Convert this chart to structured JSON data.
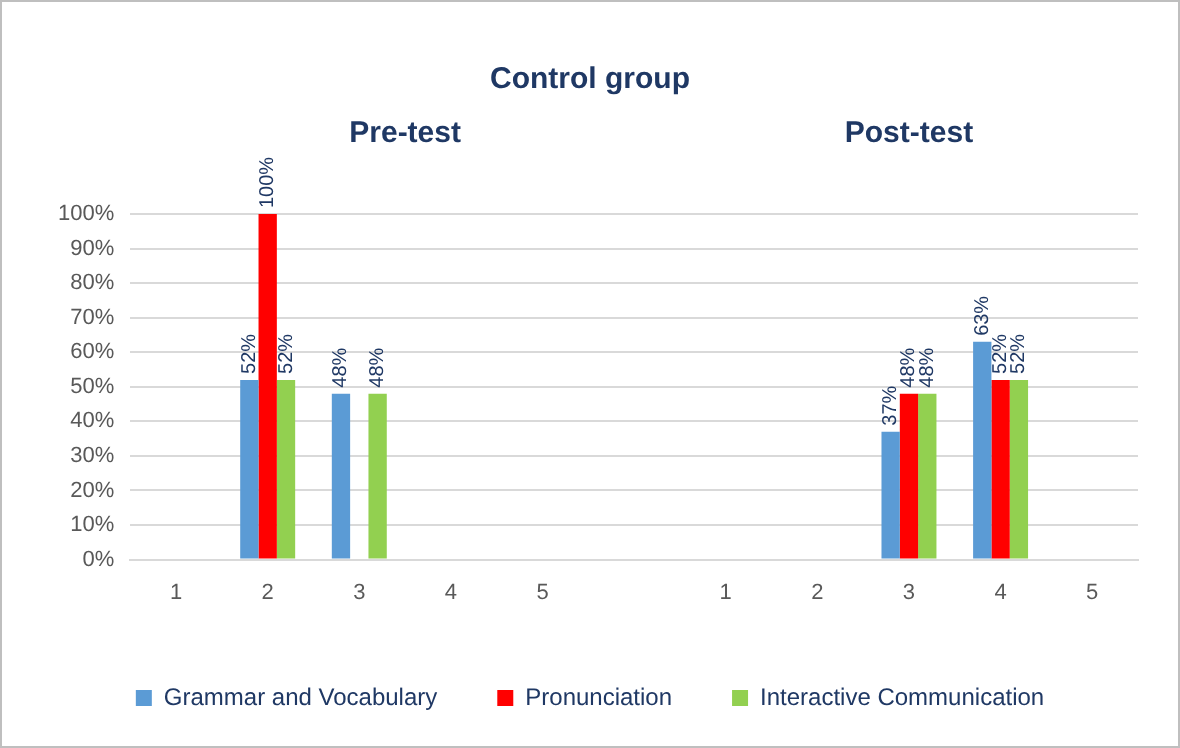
{
  "chart_data": {
    "type": "bar",
    "title": "Control group",
    "annotations": [
      "Pre-test",
      "Post-test"
    ],
    "categories": [
      "1",
      "2",
      "3",
      "4",
      "5",
      null,
      "1",
      "2",
      "3",
      "4",
      "5"
    ],
    "series": [
      {
        "name": "Grammar and Vocabulary",
        "color": "#5b9bd5",
        "values": [
          null,
          52,
          48,
          null,
          null,
          null,
          null,
          null,
          37,
          63,
          null
        ],
        "value_labels": [
          null,
          "52%",
          "48%",
          null,
          null,
          null,
          null,
          null,
          "37%",
          "63%",
          null
        ]
      },
      {
        "name": "Pronunciation",
        "color": "#ff0000",
        "values": [
          null,
          100,
          null,
          null,
          null,
          null,
          null,
          null,
          48,
          52,
          null
        ],
        "value_labels": [
          null,
          "100%",
          null,
          null,
          null,
          null,
          null,
          null,
          "48%",
          "52%",
          null
        ]
      },
      {
        "name": "Interactive Communication",
        "color": "#92d050",
        "values": [
          null,
          52,
          48,
          null,
          null,
          null,
          null,
          null,
          48,
          52,
          null
        ],
        "value_labels": [
          null,
          "52%",
          "48%",
          null,
          null,
          null,
          null,
          null,
          "48%",
          "52%",
          null
        ]
      }
    ],
    "ylim": [
      0,
      100
    ],
    "yticks": [
      {
        "value": 0,
        "label": "0%"
      },
      {
        "value": 10,
        "label": "10%"
      },
      {
        "value": 20,
        "label": "20%"
      },
      {
        "value": 30,
        "label": "30%"
      },
      {
        "value": 40,
        "label": "40%"
      },
      {
        "value": 50,
        "label": "50%"
      },
      {
        "value": 60,
        "label": "60%"
      },
      {
        "value": 70,
        "label": "70%"
      },
      {
        "value": 80,
        "label": "80%"
      },
      {
        "value": 90,
        "label": "90%"
      },
      {
        "value": 100,
        "label": "100%"
      }
    ],
    "grid": "y",
    "legend": "bottom"
  }
}
